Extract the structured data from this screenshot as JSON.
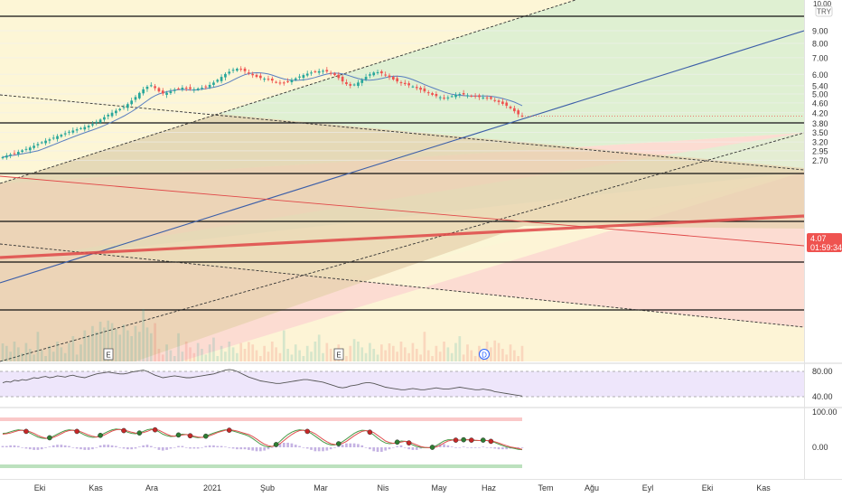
{
  "colors": {
    "up": "#26a69a",
    "down": "#ef5350",
    "zone_green": "#dff0d2",
    "zone_yellow": "#fdf6d6",
    "zone_red": "#fcdcd2",
    "channel_fill": "#e7d2ad",
    "trend_blue": "#3d5fa8",
    "trend_red": "#e04848",
    "ma_blue": "#5a7fc0",
    "rsi_line": "#555555",
    "rsi_band": "#ece3fb",
    "stoch_k": "#4a9a48",
    "stoch_d": "#e05050",
    "price_tag": "#ef5350",
    "grid": "#f0f0f0",
    "axis_text": "#333333"
  },
  "price_axis": {
    "currency_label": "TRY",
    "top_partial": "10.00",
    "ticks": [
      "9.00",
      "8.00",
      "7.00",
      "6.00",
      "5.40",
      "5.00",
      "4.60",
      "4.20",
      "3.80",
      "3.50",
      "3.20",
      "2.95",
      "2.70"
    ],
    "last_price": "4.07",
    "countdown": "01:59:34"
  },
  "rsi_axis": {
    "ticks": [
      "80.00",
      "40.00"
    ]
  },
  "stoch_axis": {
    "ticks": [
      "100.00",
      "0.00"
    ]
  },
  "time_axis": {
    "labels": [
      "Eki",
      "Kas",
      "Ara",
      "2021",
      "Şub",
      "Mar",
      "Nis",
      "May",
      "Haz",
      "Tem",
      "Ağu",
      "Eyl",
      "Eki",
      "Kas"
    ]
  },
  "event_markers": [
    {
      "label": "E",
      "kind": "earnings"
    },
    {
      "label": "E",
      "kind": "earnings"
    },
    {
      "label": "D",
      "kind": "dividend"
    }
  ],
  "chart_data": [
    {
      "type": "candlestick",
      "series": [
        {
          "close": [
            2.78,
            2.82,
            2.85,
            2.88,
            2.92,
            2.96,
            3.0,
            3.04,
            3.09,
            3.14,
            3.19,
            3.24,
            3.28,
            3.33,
            3.38,
            3.42,
            3.47,
            3.52,
            3.56,
            3.6,
            3.64,
            3.68,
            3.72,
            3.78,
            3.86,
            3.94,
            4.03,
            4.12,
            4.2,
            4.28,
            4.35,
            4.43,
            4.55,
            4.7,
            4.86,
            5.05,
            5.22,
            5.35,
            5.42,
            5.28,
            5.12,
            5.02,
            5.06,
            5.12,
            5.2,
            5.26,
            5.3,
            5.28,
            5.24,
            5.22,
            5.26,
            5.3,
            5.36,
            5.44,
            5.56,
            5.7,
            5.86,
            6.02,
            6.15,
            6.26,
            6.32,
            6.28,
            6.18,
            6.05,
            5.95,
            5.86,
            5.8,
            5.76,
            5.72,
            5.66,
            5.58,
            5.54,
            5.56,
            5.62,
            5.7,
            5.78,
            5.88,
            5.96,
            6.04,
            6.1,
            6.14,
            6.18,
            6.2,
            6.16,
            6.08,
            5.96,
            5.8,
            5.62,
            5.48,
            5.4,
            5.46,
            5.56,
            5.7,
            5.86,
            6.0,
            6.1,
            6.12,
            6.06,
            5.96,
            5.84,
            5.72,
            5.62,
            5.54,
            5.48,
            5.42,
            5.36,
            5.28,
            5.2,
            5.12,
            5.04,
            4.96,
            4.9,
            4.85,
            4.8,
            4.84,
            4.9,
            4.96,
            5.0,
            4.98,
            4.94,
            4.9,
            4.88,
            4.86,
            4.84,
            4.82,
            4.78,
            4.72,
            4.64,
            4.56,
            4.48,
            4.38,
            4.26,
            4.14,
            4.07
          ]
        }
      ],
      "ylim": [
        2.6,
        10.0
      ],
      "scale": "log"
    },
    {
      "type": "line",
      "series": [
        {
          "values": [
            62,
            64,
            63,
            66,
            65,
            67,
            66,
            68,
            70,
            69,
            71,
            72,
            70,
            71,
            73,
            72,
            71,
            73,
            74,
            72,
            71,
            70,
            72,
            74,
            76,
            77,
            78,
            79,
            78,
            77,
            76,
            76,
            77,
            79,
            80,
            81,
            82,
            80,
            77,
            74,
            72,
            70,
            71,
            72,
            73,
            72,
            71,
            70,
            70,
            71,
            72,
            73,
            74,
            75,
            76,
            78,
            80,
            82,
            83,
            82,
            80,
            77,
            74,
            71,
            69,
            67,
            65,
            64,
            63,
            62,
            61,
            61,
            62,
            63,
            64,
            65,
            66,
            67,
            67,
            66,
            65,
            64,
            63,
            61,
            59,
            57,
            55,
            54,
            55,
            57,
            58,
            59,
            61,
            62,
            62,
            61,
            59,
            57,
            55,
            54,
            53,
            52,
            51,
            51,
            52,
            53,
            52,
            51,
            51,
            52,
            53,
            54,
            53,
            52,
            52,
            53,
            54,
            55,
            54,
            53,
            52,
            51,
            51,
            52,
            51,
            50,
            48,
            47,
            46,
            45,
            44,
            43,
            42,
            41
          ]
        }
      ],
      "ylim": [
        30,
        95
      ]
    },
    {
      "type": "line",
      "series": [
        {
          "values": [
            70,
            72,
            78,
            84,
            88,
            86,
            80,
            72,
            62,
            52,
            46,
            44,
            48,
            56,
            66,
            76,
            84,
            88,
            86,
            80,
            72,
            62,
            54,
            50,
            52,
            60,
            70,
            80,
            88,
            92,
            90,
            84,
            76,
            70,
            68,
            72,
            80,
            88,
            92,
            88,
            78,
            66,
            58,
            54,
            56,
            62,
            66,
            64,
            58,
            52,
            48,
            50,
            56,
            64,
            72,
            78,
            84,
            88,
            86,
            82,
            76,
            70,
            64,
            56,
            44,
            30,
            16,
            6,
            2,
            4,
            14,
            30,
            48,
            64,
            76,
            84,
            88,
            86,
            80,
            70,
            56,
            42,
            28,
            18,
            12,
            12,
            18,
            28,
            42,
            56,
            70,
            80,
            86,
            84,
            76,
            62,
            46,
            32,
            22,
            18,
            20,
            26,
            32,
            30,
            22,
            12,
            4,
            0,
            -2,
            -2,
            0,
            8,
            20,
            32,
            38,
            38,
            36,
            36,
            38,
            38,
            36,
            34,
            34,
            36,
            34,
            30,
            24,
            16,
            8,
            2,
            -2,
            -6,
            -10,
            -12
          ]
        },
        {
          "values": [
            66,
            68,
            72,
            78,
            84,
            86,
            84,
            78,
            70,
            60,
            52,
            46,
            46,
            50,
            58,
            68,
            78,
            84,
            86,
            84,
            78,
            70,
            62,
            56,
            52,
            54,
            62,
            72,
            82,
            88,
            90,
            88,
            82,
            76,
            72,
            70,
            74,
            80,
            88,
            90,
            86,
            76,
            66,
            58,
            56,
            58,
            62,
            64,
            62,
            56,
            52,
            50,
            52,
            58,
            66,
            74,
            80,
            86,
            88,
            86,
            82,
            76,
            70,
            64,
            54,
            42,
            28,
            16,
            8,
            4,
            8,
            18,
            34,
            50,
            64,
            76,
            84,
            86,
            84,
            78,
            68,
            54,
            40,
            28,
            18,
            14,
            14,
            20,
            30,
            44,
            58,
            70,
            80,
            84,
            82,
            74,
            60,
            46,
            32,
            24,
            20,
            22,
            26,
            30,
            28,
            20,
            12,
            4,
            0,
            -2,
            -2,
            2,
            10,
            22,
            32,
            36,
            38,
            36,
            36,
            38,
            38,
            36,
            34,
            34,
            34,
            32,
            28,
            22,
            14,
            8,
            2,
            -2,
            -6,
            -10
          ]
        }
      ],
      "ylim": [
        -20,
        110
      ]
    }
  ]
}
